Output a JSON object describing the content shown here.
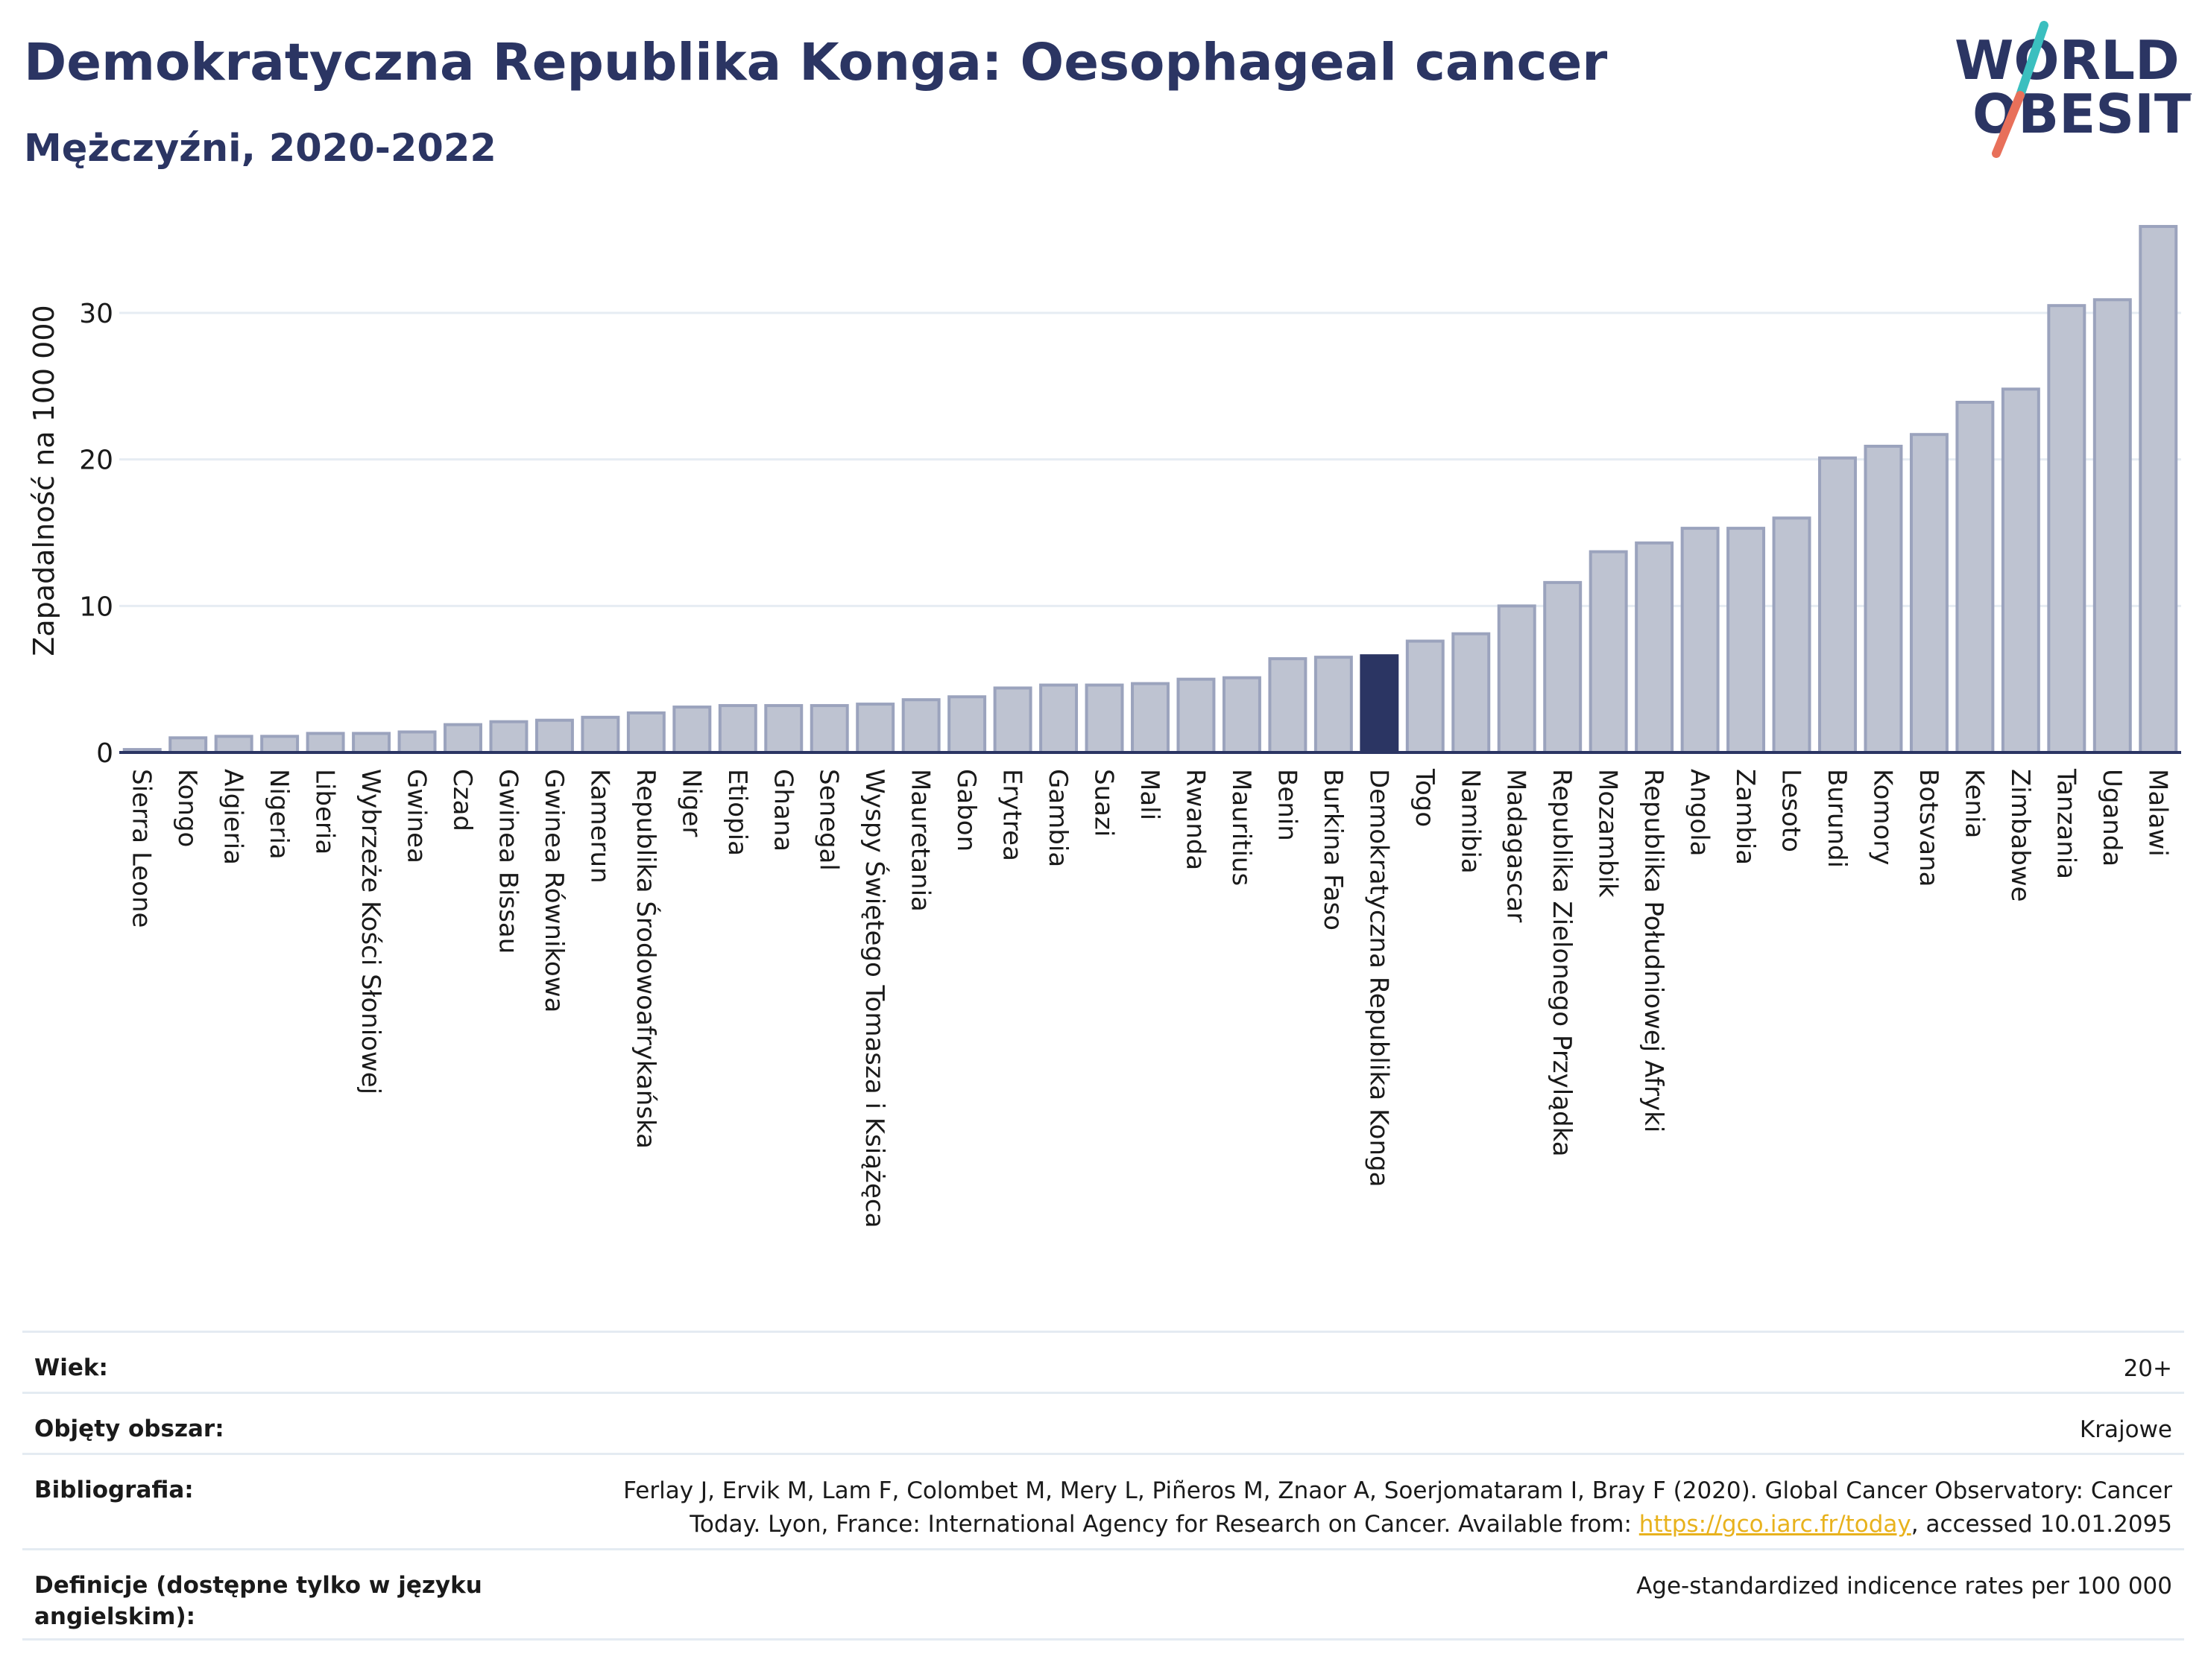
{
  "header": {
    "title": "Demokratyczna Republika Konga: Oesophageal cancer",
    "subtitle": "Mężczyźni, 2020-2022"
  },
  "logo": {
    "line1": "WORLD",
    "line2": "OBESITY",
    "colors": {
      "text": "#2b3563",
      "slash_top": "#3bbfbf",
      "slash_bottom": "#e8705a"
    }
  },
  "colors": {
    "bar": "#bec3d1",
    "bar_stroke": "#9ba3bd",
    "highlight": "#2b3563",
    "grid": "#e6ecf3",
    "axis": "#2b3563"
  },
  "chart_data": {
    "type": "bar",
    "title": "",
    "xlabel": "",
    "ylabel": "Zapadalność na 100 000",
    "ylim": [
      0,
      36
    ],
    "yticks": [
      0,
      10,
      20,
      30
    ],
    "grid": true,
    "highlight": "Demokratyczna Republika Konga",
    "categories": [
      "Sierra Leone",
      "Kongo",
      "Algieria",
      "Nigeria",
      "Liberia",
      "Wybrzeże Kości Słoniowej",
      "Gwinea",
      "Czad",
      "Gwinea Bissau",
      "Gwinea Równikowa",
      "Kamerun",
      "Republika Środowoafrykańska",
      "Niger",
      "Etiopia",
      "Ghana",
      "Senegal",
      "Wyspy Świętego Tomasza i Książęca",
      "Mauretania",
      "Gabon",
      "Erytrea",
      "Gambia",
      "Suazi",
      "Mali",
      "Rwanda",
      "Mauritius",
      "Benin",
      "Burkina Faso",
      "Demokratyczna Republika Konga",
      "Togo",
      "Namibia",
      "Madagascar",
      "Republika Zielonego Przylądka",
      "Mozambik",
      "Republika Południowej Afryki",
      "Angola",
      "Zambia",
      "Lesoto",
      "Burundi",
      "Komory",
      "Botsvana",
      "Kenia",
      "Zimbabwe",
      "Tanzania",
      "Uganda",
      "Malawi"
    ],
    "values": [
      0.2,
      1.0,
      1.1,
      1.1,
      1.3,
      1.3,
      1.4,
      1.9,
      2.1,
      2.2,
      2.4,
      2.7,
      3.1,
      3.2,
      3.2,
      3.2,
      3.3,
      3.6,
      3.8,
      4.4,
      4.6,
      4.6,
      4.7,
      5.0,
      5.1,
      6.4,
      6.5,
      6.6,
      7.6,
      8.1,
      10.0,
      11.6,
      13.7,
      14.3,
      15.3,
      15.3,
      16.0,
      20.1,
      20.9,
      21.7,
      23.9,
      24.8,
      30.5,
      30.9,
      35.9
    ]
  },
  "meta": {
    "age_label": "Wiek:",
    "age_value": "20+",
    "area_label": "Objęty obszar:",
    "area_value": "Krajowe",
    "bib_label": "Bibliografia:",
    "bib_line1": "Ferlay J, Ervik M, Lam F, Colombet M, Mery L, Piñeros M, Znaor A, Soerjomataram I, Bray F (2020). Global Cancer Observatory: Cancer",
    "bib_line2_pre": "Today. Lyon, France: International Agency for Research on Cancer. Available from: ",
    "bib_link": "https://gco.iarc.fr/today",
    "bib_line2_post": ", accessed 10.01.2095",
    "def_label": "Definicje (dostępne tylko w języku angielskim):",
    "def_value": "Age-standardized indicence rates per 100 000"
  }
}
